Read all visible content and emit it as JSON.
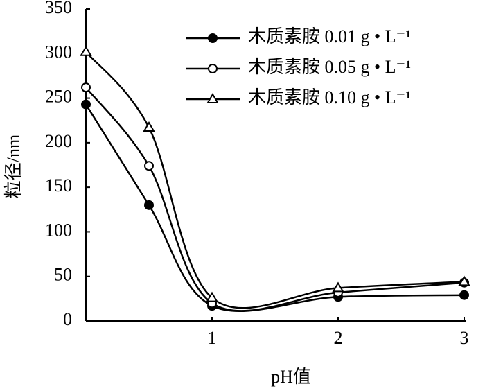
{
  "chart_data": {
    "type": "line",
    "x_label": "pH值",
    "y_label": "粒径/nm",
    "x": [
      0,
      0.5,
      1,
      2,
      3
    ],
    "xlim": [
      0,
      3
    ],
    "xticks": [
      1,
      2,
      3
    ],
    "ylim": [
      0,
      350
    ],
    "yticks": [
      0,
      50,
      100,
      150,
      200,
      250,
      300,
      350
    ],
    "legend": "top-right",
    "series": [
      {
        "name": "木质素胺 0.01 g • L⁻¹",
        "color": "#000000",
        "marker": "filled-circle",
        "values": [
          243,
          130,
          17,
          27,
          29
        ]
      },
      {
        "name": "木质素胺 0.05 g • L⁻¹",
        "color": "#000000",
        "marker": "open-circle",
        "values": [
          262,
          174,
          20,
          32,
          43
        ]
      },
      {
        "name": "木质素胺 0.10 g • L⁻¹",
        "color": "#000000",
        "marker": "open-triangle",
        "values": [
          302,
          217,
          26,
          37,
          44
        ]
      }
    ]
  }
}
